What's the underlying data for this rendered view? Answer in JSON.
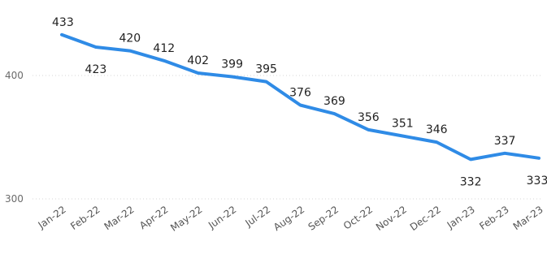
{
  "chart_data": {
    "type": "line",
    "title": "",
    "xlabel": "",
    "ylabel": "",
    "categories": [
      "Jan-22",
      "Feb-22",
      "Mar-22",
      "Apr-22",
      "May-22",
      "Jun-22",
      "Jul-22",
      "Aug-22",
      "Sep-22",
      "Oct-22",
      "Nov-22",
      "Dec-22",
      "Jan-23",
      "Feb-23",
      "Mar-23"
    ],
    "series": [
      {
        "values": [
          433,
          423,
          420,
          412,
          402,
          399,
          395,
          376,
          369,
          356,
          351,
          346,
          332,
          337,
          333
        ],
        "color": "#2f8be6"
      }
    ],
    "ylim": [
      300,
      440
    ],
    "y_ticks": [
      300,
      400
    ],
    "grid": true,
    "data_labels": true,
    "legend": "none"
  }
}
